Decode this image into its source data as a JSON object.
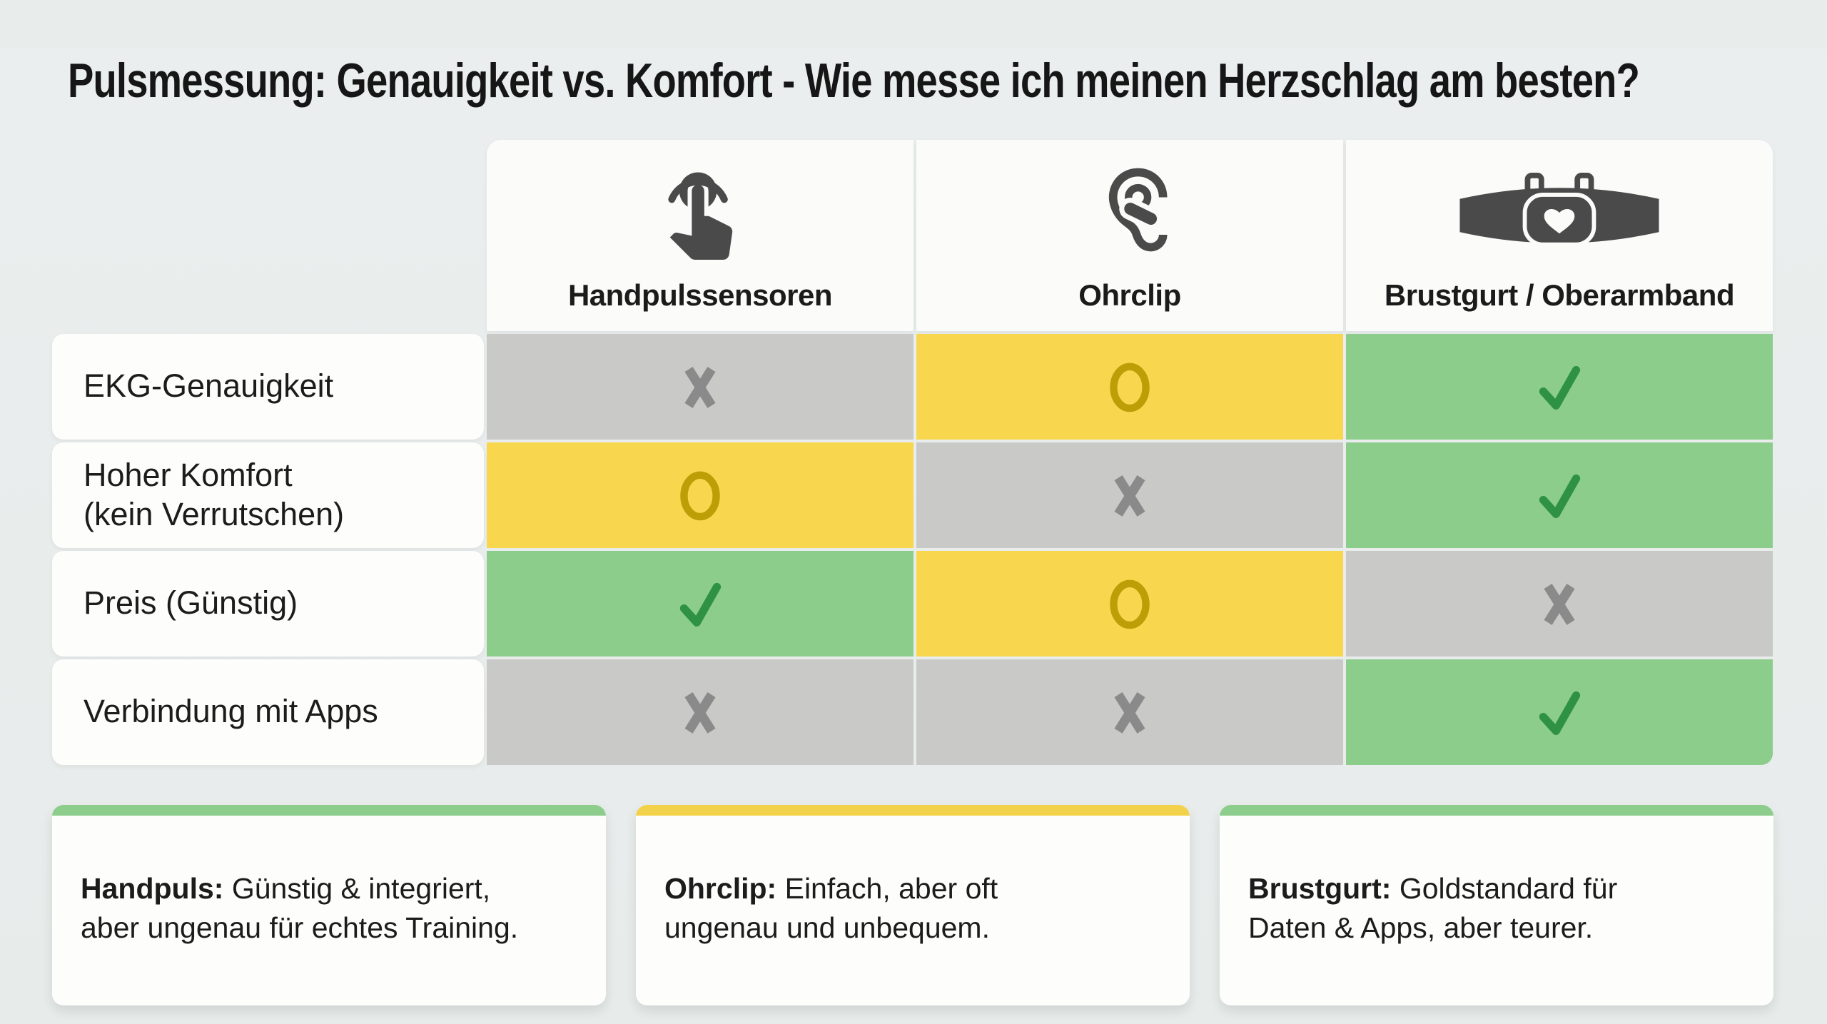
{
  "title": "Pulsmessung: Genauigkeit vs. Komfort - Wie messe ich meinen Herzschlag am besten?",
  "columns": [
    {
      "label": "Handpulssensoren",
      "icon": "touch-hand-icon"
    },
    {
      "label": "Ohrclip",
      "icon": "ear-clip-icon"
    },
    {
      "label": "Brustgurt / Oberarmband",
      "icon": "chest-strap-icon"
    }
  ],
  "rows": [
    {
      "label": "EKG-Genauigkeit",
      "values": [
        "no",
        "partial",
        "yes"
      ]
    },
    {
      "label": "Hoher Komfort\n(kein Verrutschen)",
      "values": [
        "partial",
        "no",
        "yes"
      ]
    },
    {
      "label": "Preis (Günstig)",
      "values": [
        "yes",
        "partial",
        "no"
      ]
    },
    {
      "label": "Verbindung mit Apps",
      "values": [
        "no",
        "no",
        "yes"
      ]
    }
  ],
  "cell_colors": {
    "yes_bg": "#8ccd8c",
    "yes_symbol": "#2e9144",
    "partial_bg": "#f8d74e",
    "partial_symbol": "#bd9e07",
    "no_bg": "#c9cac7",
    "no_symbol": "#8a8a8a"
  },
  "icon_color": "#4a4a4a",
  "cards": [
    {
      "lead": "Handpuls:",
      "text": "Günstig & integriert,\naber ungenau für echtes Training.",
      "accent": "#8ccd8c"
    },
    {
      "lead": "Ohrclip:",
      "text": "Einfach, aber oft\nungenau und unbequem.",
      "accent": "#f2d24b"
    },
    {
      "lead": "Brustgurt:",
      "text": "Goldstandard für\nDaten & Apps, aber teurer.",
      "accent": "#8ccd8c"
    }
  ],
  "chart_data": {
    "type": "table",
    "title": "Pulsmessung: Genauigkeit vs. Komfort - Wie messe ich meinen Herzschlag am besten?",
    "columns": [
      "Handpulssensoren",
      "Ohrclip",
      "Brustgurt / Oberarmband"
    ],
    "rows": [
      "EKG-Genauigkeit",
      "Hoher Komfort (kein Verrutschen)",
      "Preis (Günstig)",
      "Verbindung mit Apps"
    ],
    "cells": [
      [
        "no",
        "partial",
        "yes"
      ],
      [
        "partial",
        "no",
        "yes"
      ],
      [
        "yes",
        "partial",
        "no"
      ],
      [
        "no",
        "no",
        "yes"
      ]
    ],
    "legend": {
      "yes": "green check",
      "partial": "yellow circle",
      "no": "gray cross"
    }
  }
}
